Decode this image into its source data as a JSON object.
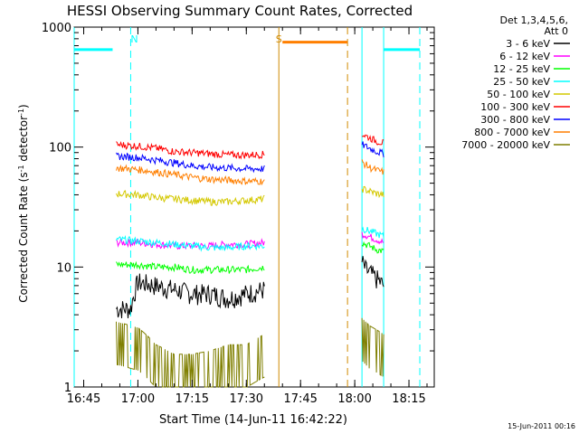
{
  "title": "HESSI Observing Summary Count Rates, Corrected",
  "footer_date": "15-Jun-2011 00:16",
  "legend": {
    "header_lines": [
      "Det 1,3,4,5,6,",
      "Att 0"
    ],
    "entries": [
      {
        "label": "3 - 6 keV",
        "color": "#000000"
      },
      {
        "label": "6 - 12 keV",
        "color": "#ff00ff"
      },
      {
        "label": "12 - 25 keV",
        "color": "#00ff00"
      },
      {
        "label": "25 - 50 keV",
        "color": "#00ffff"
      },
      {
        "label": "50 - 100 keV",
        "color": "#d4c800"
      },
      {
        "label": "100 - 300 keV",
        "color": "#ff0000"
      },
      {
        "label": "300 - 800 keV",
        "color": "#0000ff"
      },
      {
        "label": "800 - 7000 keV",
        "color": "#ff7f00"
      },
      {
        "label": "7000 - 20000 keV",
        "color": "#7f7f00"
      }
    ]
  },
  "chart_data": {
    "type": "line",
    "title": "HESSI Observing Summary Count Rates, Corrected",
    "xlabel": "Start Time (14-Jun-11 16:42:22)",
    "ylabel": "Corrected Count Rate (s^-1 detector^-1)",
    "y_scale": "log",
    "ylim": [
      1,
      1000
    ],
    "xlim": [
      "16:42:22",
      "18:22"
    ],
    "x_ticks": [
      "16:45",
      "17:00",
      "17:15",
      "17:30",
      "17:45",
      "18:00",
      "18:15"
    ],
    "y_ticks": [
      "1",
      "10",
      "100",
      "1000"
    ],
    "grid": false,
    "legend_position": "right-outside",
    "series": [
      {
        "name": "3 - 6 keV",
        "color": "#000000",
        "segments": [
          {
            "x": [
              "16:54",
              "16:56",
              "16:58",
              "17:00",
              "17:05",
              "17:10",
              "17:15",
              "17:20",
              "17:25",
              "17:30",
              "17:35"
            ],
            "y": [
              4.5,
              4.5,
              4.5,
              7.5,
              7,
              6.5,
              6,
              6,
              5.5,
              6,
              6.5
            ]
          },
          {
            "x": [
              "18:02",
              "18:03",
              "18:04",
              "18:05",
              "18:06",
              "18:07",
              "18:08"
            ],
            "y": [
              11,
              9.5,
              9,
              8.5,
              8,
              7.5,
              7
            ]
          }
        ]
      },
      {
        "name": "6 - 12 keV",
        "color": "#ff00ff",
        "segments": [
          {
            "x": [
              "16:54",
              "17:00",
              "17:05",
              "17:10",
              "17:15",
              "17:20",
              "17:25",
              "17:30",
              "17:35"
            ],
            "y": [
              16,
              16,
              15.5,
              15,
              15,
              15,
              15.5,
              15.5,
              16
            ]
          },
          {
            "x": [
              "18:02",
              "18:04",
              "18:06",
              "18:08"
            ],
            "y": [
              19,
              18,
              17,
              16
            ]
          }
        ]
      },
      {
        "name": "12 - 25 keV",
        "color": "#00ff00",
        "segments": [
          {
            "x": [
              "16:54",
              "17:00",
              "17:05",
              "17:10",
              "17:15",
              "17:20",
              "17:25",
              "17:30",
              "17:35"
            ],
            "y": [
              10.5,
              10.5,
              10,
              10,
              9.5,
              9.5,
              9.5,
              9.5,
              10
            ]
          },
          {
            "x": [
              "18:02",
              "18:04",
              "18:06",
              "18:08"
            ],
            "y": [
              16,
              15,
              14,
              13.5
            ]
          }
        ]
      },
      {
        "name": "25 - 50 keV",
        "color": "#00ffff",
        "segments": [
          {
            "x": [
              "16:54",
              "17:00",
              "17:05",
              "17:10",
              "17:15",
              "17:20",
              "17:25",
              "17:30",
              "17:35"
            ],
            "y": [
              17,
              16.5,
              16,
              15.5,
              15,
              14.5,
              14.5,
              15,
              15
            ]
          },
          {
            "x": [
              "18:02",
              "18:04",
              "18:06",
              "18:08"
            ],
            "y": [
              21,
              20,
              19,
              18
            ]
          }
        ]
      },
      {
        "name": "50 - 100 keV",
        "color": "#d4c800",
        "segments": [
          {
            "x": [
              "16:54",
              "17:00",
              "17:05",
              "17:10",
              "17:15",
              "17:20",
              "17:25",
              "17:30",
              "17:35"
            ],
            "y": [
              41,
              40,
              38,
              37,
              36,
              35,
              35,
              36,
              37
            ]
          },
          {
            "x": [
              "18:02",
              "18:04",
              "18:06",
              "18:08"
            ],
            "y": [
              45,
              43,
              41,
              40
            ]
          }
        ]
      },
      {
        "name": "100 - 300 keV",
        "color": "#ff0000",
        "segments": [
          {
            "x": [
              "16:54",
              "17:00",
              "17:05",
              "17:10",
              "17:15",
              "17:20",
              "17:25",
              "17:30",
              "17:35"
            ],
            "y": [
              105,
              102,
              98,
              92,
              90,
              88,
              86,
              86,
              87
            ]
          },
          {
            "x": [
              "18:02",
              "18:04",
              "18:06",
              "18:08"
            ],
            "y": [
              128,
              120,
              112,
              108
            ]
          }
        ]
      },
      {
        "name": "300 - 800 keV",
        "color": "#0000ff",
        "segments": [
          {
            "x": [
              "16:54",
              "17:00",
              "17:05",
              "17:10",
              "17:15",
              "17:20",
              "17:25",
              "17:30",
              "17:35"
            ],
            "y": [
              84,
              82,
              78,
              74,
              70,
              68,
              67,
              66,
              66
            ]
          },
          {
            "x": [
              "18:02",
              "18:04",
              "18:06",
              "18:08"
            ],
            "y": [
              105,
              98,
              92,
              88
            ]
          }
        ]
      },
      {
        "name": "800 - 7000 keV",
        "color": "#ff7f00",
        "segments": [
          {
            "x": [
              "16:54",
              "17:00",
              "17:05",
              "17:10",
              "17:15",
              "17:20",
              "17:25",
              "17:30",
              "17:35"
            ],
            "y": [
              67,
              65,
              62,
              59,
              56,
              54,
              53,
              52,
              52
            ]
          },
          {
            "x": [
              "18:02",
              "18:04",
              "18:06",
              "18:08"
            ],
            "y": [
              75,
              68,
              64,
              62
            ]
          }
        ]
      },
      {
        "name": "7000 - 20000 keV",
        "color": "#7f7f00",
        "segments": [
          {
            "x": [
              "16:54",
              "17:00",
              "17:05",
              "17:10",
              "17:15",
              "17:20",
              "17:25",
              "17:30",
              "17:35"
            ],
            "y": [
              2.8,
              2.5,
              1.8,
              1.5,
              1.5,
              1.6,
              1.8,
              1.8,
              2.2
            ]
          },
          {
            "x": [
              "18:02",
              "18:04",
              "18:06",
              "18:08"
            ],
            "y": [
              3,
              2.6,
              2.4,
              2.2
            ]
          }
        ]
      }
    ],
    "annotations": [
      {
        "text": "N",
        "color": "#00ffff",
        "x": "16:59"
      },
      {
        "text": "S",
        "color": "#d08a00",
        "x": "17:39"
      }
    ],
    "night_bars": [
      {
        "start": "16:42:22",
        "end": "16:53",
        "y": 650,
        "color": "#00ffff"
      },
      {
        "start": "18:08",
        "end": "18:18",
        "y": 650,
        "color": "#00ffff"
      }
    ],
    "saa_bars": [
      {
        "start": "17:40",
        "end": "17:58",
        "y": 750,
        "color": "#ff7f00"
      }
    ],
    "night_lines_solid": [
      "16:42:22",
      "18:02",
      "18:08"
    ],
    "night_lines_dashed": [
      "16:58",
      "18:18"
    ],
    "saa_lines_solid": [
      "17:39"
    ],
    "saa_lines_dashed": [
      "17:58"
    ]
  }
}
